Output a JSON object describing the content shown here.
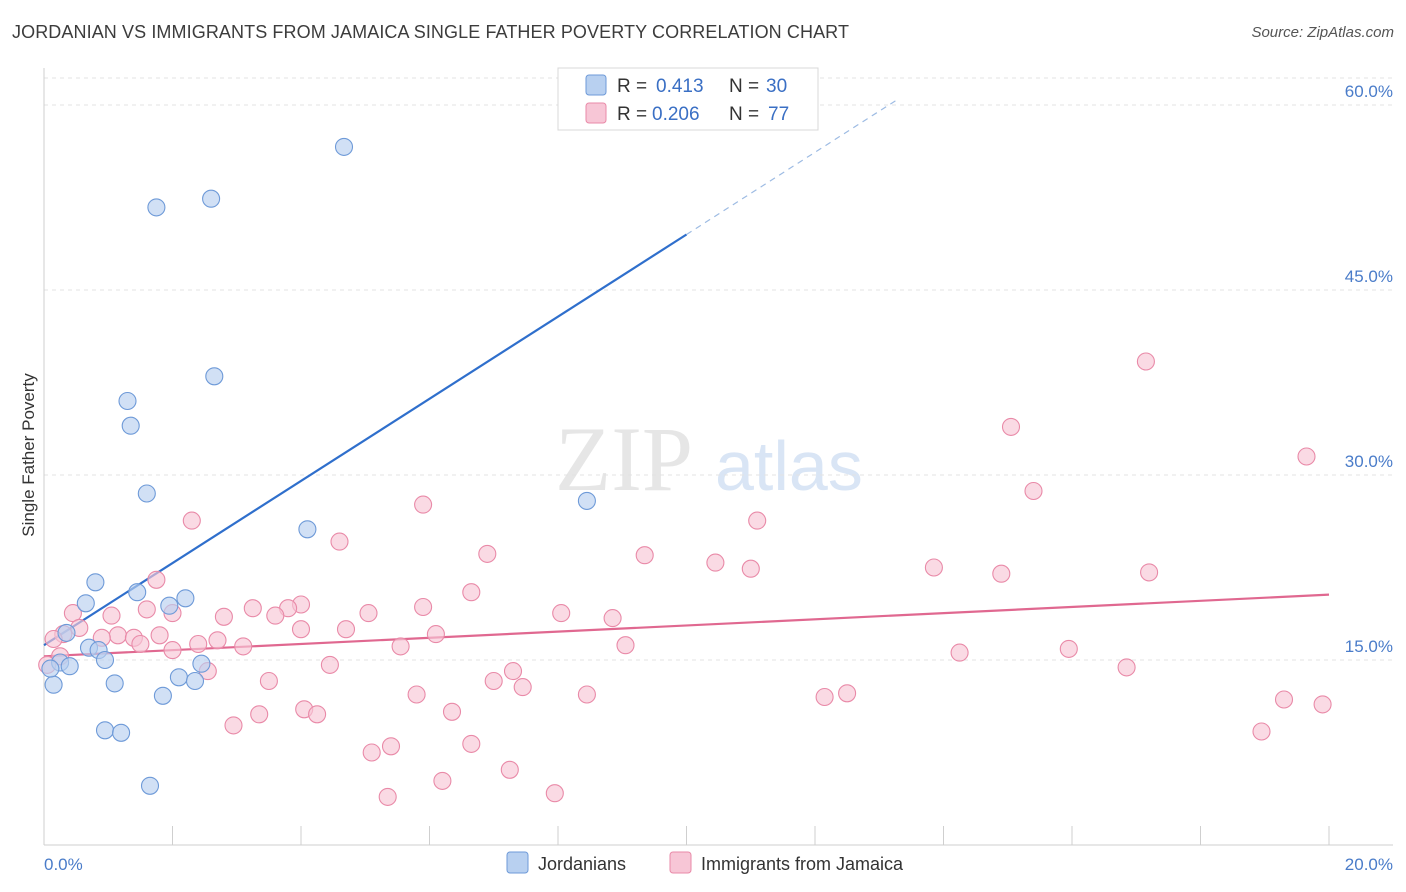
{
  "header": {
    "title": "JORDANIAN VS IMMIGRANTS FROM JAMAICA SINGLE FATHER POVERTY CORRELATION CHART",
    "source": "Source: ZipAtlas.com"
  },
  "watermark": {
    "zip": "ZIP",
    "atlas": "atlas"
  },
  "colors": {
    "blue_fill": "#b8d0f0",
    "blue_stroke": "#6e9ad8",
    "blue_line": "#2f6fcc",
    "pink_fill": "#f7c6d6",
    "pink_stroke": "#e98aa8",
    "pink_line": "#e06890",
    "axis_label": "#4a7cc9"
  },
  "legend_top": {
    "rows": [
      {
        "r_label": "R =",
        "r_value": "0.413",
        "n_label": "N =",
        "n_value": "30"
      },
      {
        "r_label": "R =",
        "r_value": "0.206",
        "n_label": "N =",
        "n_value": "77"
      }
    ]
  },
  "legend_bottom": {
    "items": [
      {
        "label": "Jordanians"
      },
      {
        "label": "Immigrants from Jamaica"
      }
    ]
  },
  "chart_data": {
    "type": "scatter",
    "title": "JORDANIAN VS IMMIGRANTS FROM JAMAICA SINGLE FATHER POVERTY CORRELATION CHART",
    "xlabel": "",
    "ylabel": "Single Father Poverty",
    "xlim": [
      0,
      20
    ],
    "ylim": [
      0,
      63
    ],
    "x_tick_labels": [
      "0.0%",
      "20.0%"
    ],
    "y_ticks": [
      15,
      30,
      45,
      60
    ],
    "y_tick_labels": [
      "15.0%",
      "30.0%",
      "45.0%",
      "60.0%"
    ],
    "grid": "horizontal dashed",
    "legend_position": "top-center",
    "series": [
      {
        "name": "Jordanians",
        "r": 0.413,
        "n": 30,
        "trend": {
          "x0": 0.0,
          "y0": 16.2,
          "x1": 10.0,
          "y1": 49.5,
          "dashed_to_x": 13.3,
          "dashed_to_y": 60.5
        },
        "points": [
          [
            4.67,
            56.6
          ],
          [
            1.75,
            51.7
          ],
          [
            2.6,
            52.4
          ],
          [
            2.65,
            38.0
          ],
          [
            1.3,
            36.0
          ],
          [
            1.35,
            34.0
          ],
          [
            1.6,
            28.5
          ],
          [
            8.45,
            27.9
          ],
          [
            4.1,
            25.6
          ],
          [
            0.8,
            21.3
          ],
          [
            1.45,
            20.5
          ],
          [
            2.2,
            20.0
          ],
          [
            0.65,
            19.6
          ],
          [
            1.95,
            19.4
          ],
          [
            0.35,
            17.2
          ],
          [
            0.7,
            16.0
          ],
          [
            0.85,
            15.8
          ],
          [
            0.95,
            15.0
          ],
          [
            0.25,
            14.8
          ],
          [
            0.4,
            14.5
          ],
          [
            2.45,
            14.7
          ],
          [
            2.1,
            13.6
          ],
          [
            2.35,
            13.3
          ],
          [
            1.1,
            13.1
          ],
          [
            0.15,
            13.0
          ],
          [
            1.85,
            12.1
          ],
          [
            0.95,
            9.3
          ],
          [
            1.2,
            9.1
          ],
          [
            1.65,
            4.8
          ],
          [
            0.1,
            14.3
          ]
        ]
      },
      {
        "name": "Immigrants from Jamaica",
        "r": 0.206,
        "n": 77,
        "trend": {
          "x0": 0.0,
          "y0": 15.3,
          "x1": 20.0,
          "y1": 20.3
        },
        "points": [
          [
            17.15,
            39.2
          ],
          [
            15.05,
            33.9
          ],
          [
            19.65,
            31.5
          ],
          [
            15.4,
            28.7
          ],
          [
            5.9,
            27.6
          ],
          [
            2.3,
            26.3
          ],
          [
            11.1,
            26.3
          ],
          [
            4.6,
            24.6
          ],
          [
            6.9,
            23.6
          ],
          [
            9.35,
            23.5
          ],
          [
            10.45,
            22.9
          ],
          [
            11.0,
            22.4
          ],
          [
            13.85,
            22.5
          ],
          [
            14.9,
            22.0
          ],
          [
            17.2,
            22.1
          ],
          [
            1.75,
            21.5
          ],
          [
            6.65,
            20.5
          ],
          [
            4.0,
            19.5
          ],
          [
            5.9,
            19.3
          ],
          [
            1.6,
            19.1
          ],
          [
            3.25,
            19.2
          ],
          [
            3.8,
            19.2
          ],
          [
            5.05,
            18.8
          ],
          [
            0.45,
            18.8
          ],
          [
            1.05,
            18.6
          ],
          [
            2.0,
            18.8
          ],
          [
            2.8,
            18.5
          ],
          [
            3.6,
            18.6
          ],
          [
            8.05,
            18.8
          ],
          [
            8.85,
            18.4
          ],
          [
            0.55,
            17.6
          ],
          [
            0.3,
            17.1
          ],
          [
            1.15,
            17.0
          ],
          [
            1.8,
            17.0
          ],
          [
            0.9,
            16.8
          ],
          [
            1.4,
            16.8
          ],
          [
            2.7,
            16.6
          ],
          [
            4.0,
            17.5
          ],
          [
            4.7,
            17.5
          ],
          [
            6.1,
            17.1
          ],
          [
            1.5,
            16.3
          ],
          [
            2.4,
            16.3
          ],
          [
            0.15,
            16.7
          ],
          [
            3.1,
            16.1
          ],
          [
            5.55,
            16.1
          ],
          [
            9.05,
            16.2
          ],
          [
            15.95,
            15.9
          ],
          [
            14.25,
            15.6
          ],
          [
            2.0,
            15.8
          ],
          [
            0.25,
            15.3
          ],
          [
            0.05,
            14.6
          ],
          [
            4.45,
            14.6
          ],
          [
            16.85,
            14.4
          ],
          [
            2.55,
            14.1
          ],
          [
            7.3,
            14.1
          ],
          [
            3.5,
            13.3
          ],
          [
            7.0,
            13.3
          ],
          [
            7.45,
            12.8
          ],
          [
            5.8,
            12.2
          ],
          [
            8.45,
            12.2
          ],
          [
            12.5,
            12.3
          ],
          [
            12.15,
            12.0
          ],
          [
            19.3,
            11.8
          ],
          [
            19.9,
            11.4
          ],
          [
            4.05,
            11.0
          ],
          [
            4.25,
            10.6
          ],
          [
            6.35,
            10.8
          ],
          [
            3.35,
            10.6
          ],
          [
            2.95,
            9.7
          ],
          [
            18.95,
            9.2
          ],
          [
            6.65,
            8.2
          ],
          [
            5.4,
            8.0
          ],
          [
            5.1,
            7.5
          ],
          [
            7.25,
            6.1
          ],
          [
            6.2,
            5.2
          ],
          [
            5.35,
            3.9
          ],
          [
            7.95,
            4.2
          ]
        ]
      }
    ]
  }
}
